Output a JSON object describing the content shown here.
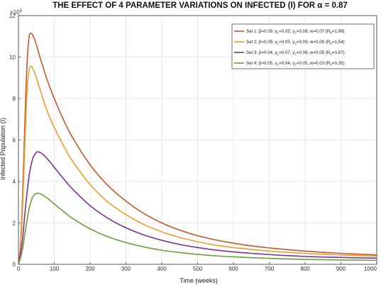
{
  "chart_data": {
    "type": "line",
    "title": "THE EFFECT OF 4 PARAMETER VARIATIONS ON INFECTED (I) FOR α = 0.87",
    "xlabel": "Time (weeks)",
    "ylabel": "Infected Population (I)",
    "y_exponent_label": "×10",
    "y_exponent_power": "5",
    "xlim": [
      0,
      1000
    ],
    "ylim": [
      0,
      1200000
    ],
    "xticks": [
      0,
      100,
      200,
      300,
      400,
      500,
      600,
      700,
      800,
      900,
      1000
    ],
    "xtick_labels": [
      "0",
      "100",
      "200",
      "300",
      "400",
      "500",
      "600",
      "700",
      "800",
      "900",
      "1000"
    ],
    "yticks": [
      0,
      200000,
      400000,
      600000,
      800000,
      1000000,
      1200000
    ],
    "ytick_labels": [
      "0",
      "2",
      "4",
      "6",
      "8",
      "10",
      "12"
    ],
    "grid": true,
    "legend_position": "top-right",
    "series": [
      {
        "name": "Set 1: β=0.09, γ1=0.05, γ2=0.08, w=0.07 (R0=1.99)",
        "color": "#c4572e",
        "x": [
          0,
          5,
          10,
          15,
          20,
          25,
          30,
          35,
          40,
          45,
          50,
          60,
          70,
          80,
          100,
          125,
          150,
          200,
          250,
          300,
          350,
          400,
          450,
          500,
          550,
          600,
          650,
          700,
          750,
          800,
          850,
          900,
          950,
          1000
        ],
        "y": [
          0,
          80000,
          250000,
          520000,
          800000,
          1000000,
          1100000,
          1115000,
          1105000,
          1085000,
          1060000,
          1000000,
          945000,
          890000,
          800000,
          700000,
          615000,
          480000,
          380000,
          305000,
          245000,
          200000,
          165000,
          138000,
          118000,
          102000,
          89000,
          79000,
          71000,
          64000,
          58000,
          53000,
          49000,
          45000
        ]
      },
      {
        "name": "Set 2: β=0.09, γ1=0.05, γ2=0.09, w=0.06 (R0=1.54)",
        "color": "#e89f2c",
        "x": [
          0,
          5,
          10,
          15,
          20,
          25,
          30,
          35,
          40,
          45,
          50,
          60,
          70,
          80,
          100,
          125,
          150,
          200,
          250,
          300,
          350,
          400,
          450,
          500,
          550,
          600,
          650,
          700,
          750,
          800,
          850,
          900,
          950,
          1000
        ],
        "y": [
          0,
          70000,
          210000,
          430000,
          680000,
          860000,
          940000,
          955000,
          945000,
          925000,
          900000,
          845000,
          790000,
          740000,
          660000,
          575000,
          500000,
          385000,
          300000,
          240000,
          192000,
          157000,
          130000,
          109000,
          93000,
          81000,
          72000,
          64000,
          58000,
          53000,
          49000,
          45000,
          42000,
          40000
        ]
      },
      {
        "name": "Set 3: β=0.04, γ1=0.07, γ2=0.08, w=0.05 (R0=0.87)",
        "color": "#7b3294",
        "x": [
          0,
          10,
          20,
          30,
          40,
          50,
          55,
          60,
          65,
          70,
          80,
          90,
          100,
          125,
          150,
          200,
          250,
          300,
          350,
          400,
          450,
          500,
          550,
          600,
          650,
          700,
          750,
          800,
          850,
          900,
          950,
          1000
        ],
        "y": [
          0,
          100000,
          280000,
          430000,
          510000,
          540000,
          542000,
          540000,
          535000,
          528000,
          510000,
          490000,
          468000,
          415000,
          365000,
          283000,
          222000,
          176000,
          142000,
          116000,
          96000,
          81000,
          69000,
          60000,
          53000,
          47000,
          42000,
          38000,
          35000,
          33000,
          31000,
          30000
        ]
      },
      {
        "name": "Set 4: β=0.05, γ1=0.04, γ2=0.05, w=0.03 (R0=0.35)",
        "color": "#6a9e3c",
        "x": [
          0,
          10,
          20,
          30,
          40,
          50,
          55,
          60,
          65,
          70,
          80,
          90,
          100,
          125,
          150,
          200,
          250,
          300,
          350,
          400,
          450,
          500,
          550,
          600,
          650,
          700,
          750,
          800,
          850,
          900,
          950,
          1000
        ],
        "y": [
          0,
          60000,
          170000,
          270000,
          325000,
          342000,
          343000,
          341000,
          337000,
          332000,
          320000,
          306000,
          291000,
          256000,
          223000,
          171000,
          133000,
          105000,
          84000,
          68000,
          57000,
          48000,
          41000,
          36000,
          32000,
          29000,
          26000,
          24000,
          22000,
          21000,
          20000,
          19000
        ]
      }
    ]
  },
  "legend_entries": [
    {
      "set": "Set 1",
      "beta": "0.09",
      "g1": "0.05",
      "g2": "0.08",
      "w": "0.07",
      "r0": "1.99"
    },
    {
      "set": "Set 2",
      "beta": "0.09",
      "g1": "0.05",
      "g2": "0.09",
      "w": "0.06",
      "r0": "1.54"
    },
    {
      "set": "Set 3",
      "beta": "0.04",
      "g1": "0.07",
      "g2": "0.08",
      "w": "0.05",
      "r0": "0.87"
    },
    {
      "set": "Set 4",
      "beta": "0.05",
      "g1": "0.04",
      "g2": "0.05",
      "w": "0.03",
      "r0": "0.35"
    }
  ]
}
